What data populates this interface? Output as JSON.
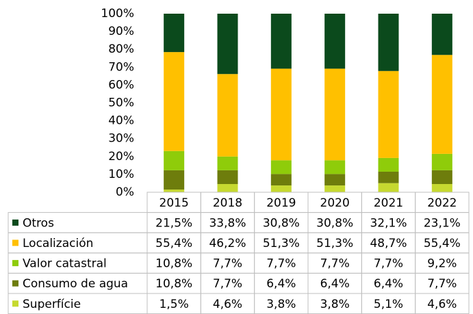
{
  "chart_data": {
    "type": "stacked_bar_100",
    "categories": [
      "2015",
      "2018",
      "2019",
      "2020",
      "2021",
      "2022"
    ],
    "series": [
      {
        "name": "Otros",
        "color": "#0b4a1c",
        "values": [
          21.5,
          33.8,
          30.8,
          30.8,
          32.1,
          23.1
        ],
        "value_labels": [
          "21,5%",
          "33,8%",
          "30,8%",
          "30,8%",
          "32,1%",
          "23,1%"
        ]
      },
      {
        "name": "Localización",
        "color": "#ffc000",
        "values": [
          55.4,
          46.2,
          51.3,
          51.3,
          48.7,
          55.4
        ],
        "value_labels": [
          "55,4%",
          "46,2%",
          "51,3%",
          "51,3%",
          "48,7%",
          "55,4%"
        ]
      },
      {
        "name": "Valor catastral",
        "color": "#8fcc0a",
        "values": [
          10.8,
          7.7,
          7.7,
          7.7,
          7.7,
          9.2
        ],
        "value_labels": [
          "10,8%",
          "7,7%",
          "7,7%",
          "7,7%",
          "7,7%",
          "9,2%"
        ]
      },
      {
        "name": "Consumo de agua",
        "color": "#6e7d0c",
        "values": [
          10.8,
          7.7,
          6.4,
          6.4,
          6.4,
          7.7
        ],
        "value_labels": [
          "10,8%",
          "7,7%",
          "6,4%",
          "6,4%",
          "6,4%",
          "7,7%"
        ]
      },
      {
        "name": "Superfície",
        "color": "#c6d930",
        "values": [
          1.5,
          4.6,
          3.8,
          3.8,
          5.1,
          4.6
        ],
        "value_labels": [
          "1,5%",
          "4,6%",
          "3,8%",
          "3,8%",
          "5,1%",
          "4,6%"
        ]
      }
    ],
    "ylim": [
      0,
      100
    ],
    "yticks": [
      {
        "value": 0,
        "label": "0%"
      },
      {
        "value": 10,
        "label": "10%"
      },
      {
        "value": 20,
        "label": "20%"
      },
      {
        "value": 30,
        "label": "30%"
      },
      {
        "value": 40,
        "label": "40%"
      },
      {
        "value": 50,
        "label": "50%"
      },
      {
        "value": 60,
        "label": "60%"
      },
      {
        "value": 70,
        "label": "70%"
      },
      {
        "value": 80,
        "label": "80%"
      },
      {
        "value": 90,
        "label": "90%"
      },
      {
        "value": 100,
        "label": "100%"
      }
    ],
    "grid": false
  }
}
